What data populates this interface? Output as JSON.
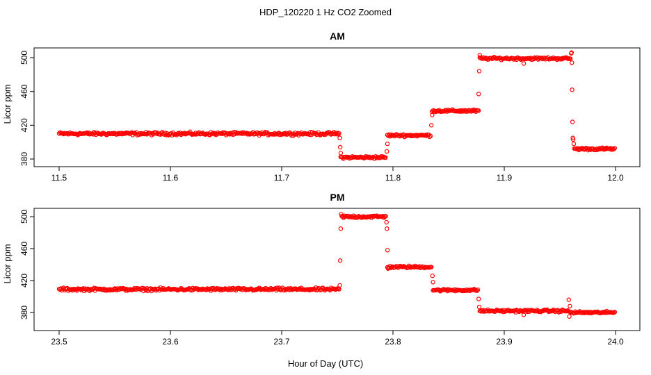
{
  "figure": {
    "title": "HDP_120220  1 Hz CO2 Zoomed",
    "xlabel": "Hour of Day (UTC)"
  },
  "colors": {
    "points": "#ff0000",
    "axes": "#000000",
    "background": "#ffffff"
  },
  "chart_data": [
    {
      "type": "scatter",
      "title": "AM",
      "ylabel": "Licor ppm",
      "xlim": [
        11.5,
        12.0
      ],
      "ylim": [
        370,
        512
      ],
      "x_ticks": [
        "11.5",
        "11.6",
        "11.7",
        "11.8",
        "11.9",
        "12.0"
      ],
      "y_ticks": [
        "380",
        "420",
        "460",
        "500"
      ],
      "grid": false,
      "marker": "open-circle",
      "color": "#ff0000",
      "segments": [
        {
          "x_start": 11.5,
          "x_end": 11.752,
          "y": 410,
          "noise": 1.2
        },
        {
          "x_start": 11.753,
          "x_end": 11.794,
          "y": 382,
          "noise": 1.0
        },
        {
          "x_start": 11.795,
          "x_end": 11.834,
          "y": 408,
          "noise": 1.0
        },
        {
          "x_start": 11.835,
          "x_end": 11.877,
          "y": 437,
          "noise": 1.0
        },
        {
          "x_start": 11.878,
          "x_end": 11.96,
          "y": 499,
          "noise": 1.0
        },
        {
          "x_start": 11.963,
          "x_end": 12.0,
          "y": 392,
          "noise": 1.0
        }
      ],
      "outliers": [
        [
          11.7522,
          405
        ],
        [
          11.7526,
          394
        ],
        [
          11.7531,
          387
        ],
        [
          11.7945,
          389
        ],
        [
          11.795,
          398
        ],
        [
          11.8345,
          420
        ],
        [
          11.8352,
          432
        ],
        [
          11.877,
          457
        ],
        [
          11.8775,
          484
        ],
        [
          11.878,
          503
        ],
        [
          11.9175,
          493
        ],
        [
          11.9602,
          505
        ],
        [
          11.9605,
          506
        ],
        [
          11.9608,
          494
        ],
        [
          11.961,
          462
        ],
        [
          11.9613,
          424
        ],
        [
          11.9616,
          405
        ],
        [
          11.962,
          403
        ],
        [
          11.9625,
          398
        ]
      ]
    },
    {
      "type": "scatter",
      "title": "PM",
      "ylabel": "Licor ppm",
      "xlim": [
        23.5,
        24.0
      ],
      "ylim": [
        370,
        512
      ],
      "x_ticks": [
        "23.5",
        "23.6",
        "23.7",
        "23.8",
        "23.9",
        "24.0"
      ],
      "y_ticks": [
        "380",
        "420",
        "460",
        "500"
      ],
      "grid": false,
      "marker": "open-circle",
      "color": "#ff0000",
      "segments": [
        {
          "x_start": 23.5,
          "x_end": 23.752,
          "y": 409,
          "noise": 1.2
        },
        {
          "x_start": 23.754,
          "x_end": 23.794,
          "y": 500,
          "noise": 1.2
        },
        {
          "x_start": 23.795,
          "x_end": 23.835,
          "y": 437,
          "noise": 1.0
        },
        {
          "x_start": 23.836,
          "x_end": 23.877,
          "y": 408,
          "noise": 1.0
        },
        {
          "x_start": 23.878,
          "x_end": 23.958,
          "y": 382,
          "noise": 1.0
        },
        {
          "x_start": 23.959,
          "x_end": 24.0,
          "y": 380,
          "noise": 1.0
        }
      ],
      "outliers": [
        [
          23.7522,
          414
        ],
        [
          23.7526,
          445
        ],
        [
          23.7531,
          485
        ],
        [
          23.7535,
          503
        ],
        [
          23.7942,
          493
        ],
        [
          23.7946,
          485
        ],
        [
          23.7951,
          458
        ],
        [
          23.7956,
          435
        ],
        [
          23.8355,
          426
        ],
        [
          23.836,
          418
        ],
        [
          23.877,
          397
        ],
        [
          23.8775,
          387
        ],
        [
          23.9175,
          377
        ],
        [
          23.958,
          396
        ],
        [
          23.9585,
          375
        ],
        [
          23.959,
          388
        ]
      ]
    }
  ]
}
